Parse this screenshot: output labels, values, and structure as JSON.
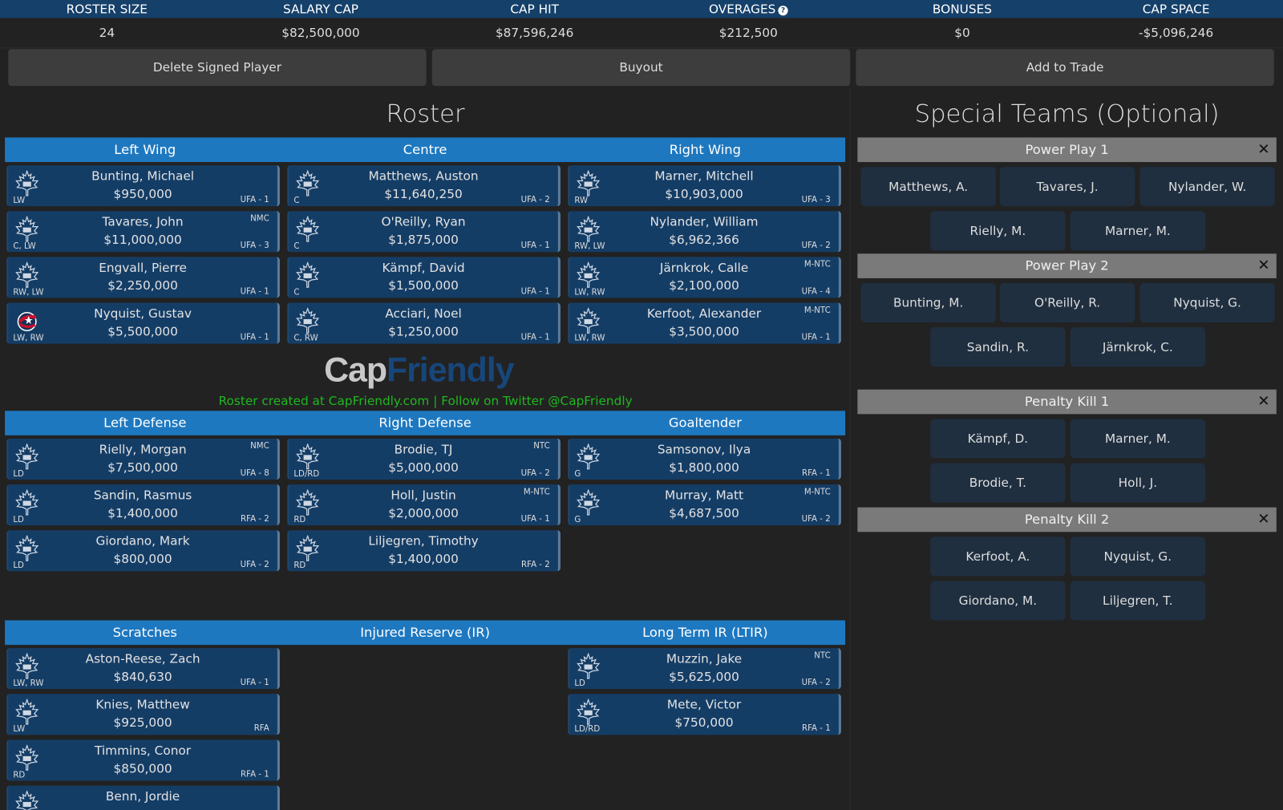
{
  "summary": {
    "headers": [
      "ROSTER SIZE",
      "SALARY CAP",
      "CAP HIT",
      "OVERAGES",
      "BONUSES",
      "CAP SPACE"
    ],
    "values": [
      "24",
      "$82,500,000",
      "$87,596,246",
      "$212,500",
      "$0",
      "-$5,096,246"
    ]
  },
  "actions": {
    "delete": "Delete Signed Player",
    "buyout": "Buyout",
    "trade": "Add to Trade"
  },
  "roster_title": "Roster",
  "special_title": "Special Teams (Optional)",
  "forward_headers": [
    "Left Wing",
    "Centre",
    "Right Wing"
  ],
  "defense_headers": [
    "Left Defense",
    "Right Defense",
    "Goaltender"
  ],
  "reserve_headers": [
    "Scratches",
    "Injured Reserve (IR)",
    "Long Term IR (LTIR)"
  ],
  "logo_text": {
    "cap": "Cap",
    "friendly": "Friendly"
  },
  "credit": "Roster created at CapFriendly.com | Follow on Twitter @CapFriendly",
  "colors": {
    "accent": "#1e78c0",
    "header": "#15406a",
    "card": "#143d66",
    "credit": "#1fb81f"
  },
  "forwards": [
    [
      {
        "name": "Bunting, Michael",
        "salary": "$950,000",
        "pos": "LW",
        "status": "UFA - 1",
        "tag": ""
      },
      {
        "name": "Tavares, John",
        "salary": "$11,000,000",
        "pos": "C, LW",
        "status": "UFA - 3",
        "tag": "NMC"
      },
      {
        "name": "Engvall, Pierre",
        "salary": "$2,250,000",
        "pos": "RW, LW",
        "status": "UFA - 1",
        "tag": ""
      },
      {
        "name": "Nyquist, Gustav",
        "salary": "$5,500,000",
        "pos": "LW, RW",
        "status": "UFA - 1",
        "tag": "",
        "team": "CBJ"
      }
    ],
    [
      {
        "name": "Matthews, Auston",
        "salary": "$11,640,250",
        "pos": "C",
        "status": "UFA - 2",
        "tag": ""
      },
      {
        "name": "O'Reilly, Ryan",
        "salary": "$1,875,000",
        "pos": "C",
        "status": "UFA - 1",
        "tag": ""
      },
      {
        "name": "Kämpf, David",
        "salary": "$1,500,000",
        "pos": "C",
        "status": "UFA - 1",
        "tag": ""
      },
      {
        "name": "Acciari, Noel",
        "salary": "$1,250,000",
        "pos": "C, RW",
        "status": "UFA - 1",
        "tag": ""
      }
    ],
    [
      {
        "name": "Marner, Mitchell",
        "salary": "$10,903,000",
        "pos": "RW",
        "status": "UFA - 3",
        "tag": ""
      },
      {
        "name": "Nylander, William",
        "salary": "$6,962,366",
        "pos": "RW, LW",
        "status": "UFA - 2",
        "tag": ""
      },
      {
        "name": "Järnkrok, Calle",
        "salary": "$2,100,000",
        "pos": "LW, RW",
        "status": "UFA - 4",
        "tag": "M-NTC"
      },
      {
        "name": "Kerfoot, Alexander",
        "salary": "$3,500,000",
        "pos": "LW, RW",
        "status": "UFA - 1",
        "tag": "M-NTC"
      }
    ]
  ],
  "defense": [
    [
      {
        "name": "Rielly, Morgan",
        "salary": "$7,500,000",
        "pos": "LD",
        "status": "UFA - 8",
        "tag": "NMC"
      },
      {
        "name": "Sandin, Rasmus",
        "salary": "$1,400,000",
        "pos": "LD",
        "status": "RFA - 2",
        "tag": ""
      },
      {
        "name": "Giordano, Mark",
        "salary": "$800,000",
        "pos": "LD",
        "status": "UFA - 2",
        "tag": ""
      }
    ],
    [
      {
        "name": "Brodie, TJ",
        "salary": "$5,000,000",
        "pos": "LD/RD",
        "status": "UFA - 2",
        "tag": "NTC"
      },
      {
        "name": "Holl, Justin",
        "salary": "$2,000,000",
        "pos": "RD",
        "status": "UFA - 1",
        "tag": "M-NTC"
      },
      {
        "name": "Liljegren, Timothy",
        "salary": "$1,400,000",
        "pos": "RD",
        "status": "RFA - 2",
        "tag": ""
      }
    ],
    [
      {
        "name": "Samsonov, Ilya",
        "salary": "$1,800,000",
        "pos": "G",
        "status": "RFA - 1",
        "tag": ""
      },
      {
        "name": "Murray, Matt",
        "salary": "$4,687,500",
        "pos": "G",
        "status": "UFA - 2",
        "tag": "M-NTC"
      }
    ]
  ],
  "reserves": [
    [
      {
        "name": "Aston-Reese, Zach",
        "salary": "$840,630",
        "pos": "LW, RW",
        "status": "UFA - 1",
        "tag": ""
      },
      {
        "name": "Knies, Matthew",
        "salary": "$925,000",
        "pos": "LW",
        "status": "RFA",
        "tag": ""
      },
      {
        "name": "Timmins, Conor",
        "salary": "$850,000",
        "pos": "RD",
        "status": "RFA - 1",
        "tag": ""
      },
      {
        "name": "Benn, Jordie",
        "salary": "",
        "pos": "",
        "status": "",
        "tag": ""
      }
    ],
    [],
    [
      {
        "name": "Muzzin, Jake",
        "salary": "$5,625,000",
        "pos": "LD",
        "status": "UFA - 2",
        "tag": "NTC"
      },
      {
        "name": "Mete, Victor",
        "salary": "$750,000",
        "pos": "LD/RD",
        "status": "RFA - 1",
        "tag": ""
      }
    ]
  ],
  "special_teams": [
    {
      "title": "Power Play 1",
      "close": "✕",
      "players": [
        "Matthews, A.",
        "Tavares, J.",
        "Nylander, W.",
        "Rielly, M.",
        "Marner, M."
      ]
    },
    {
      "title": "Power Play 2",
      "close": "✕",
      "players": [
        "Bunting, M.",
        "O'Reilly, R.",
        "Nyquist, G.",
        "Sandin, R.",
        "Järnkrok, C."
      ]
    },
    {
      "title": "Penalty Kill 1",
      "close": "✕",
      "players": [
        "Kämpf, D.",
        "Marner, M.",
        "Brodie, T.",
        "Holl, J."
      ]
    },
    {
      "title": "Penalty Kill 2",
      "close": "✕",
      "players": [
        "Kerfoot, A.",
        "Nyquist, G.",
        "Giordano, M.",
        "Liljegren, T."
      ]
    }
  ]
}
